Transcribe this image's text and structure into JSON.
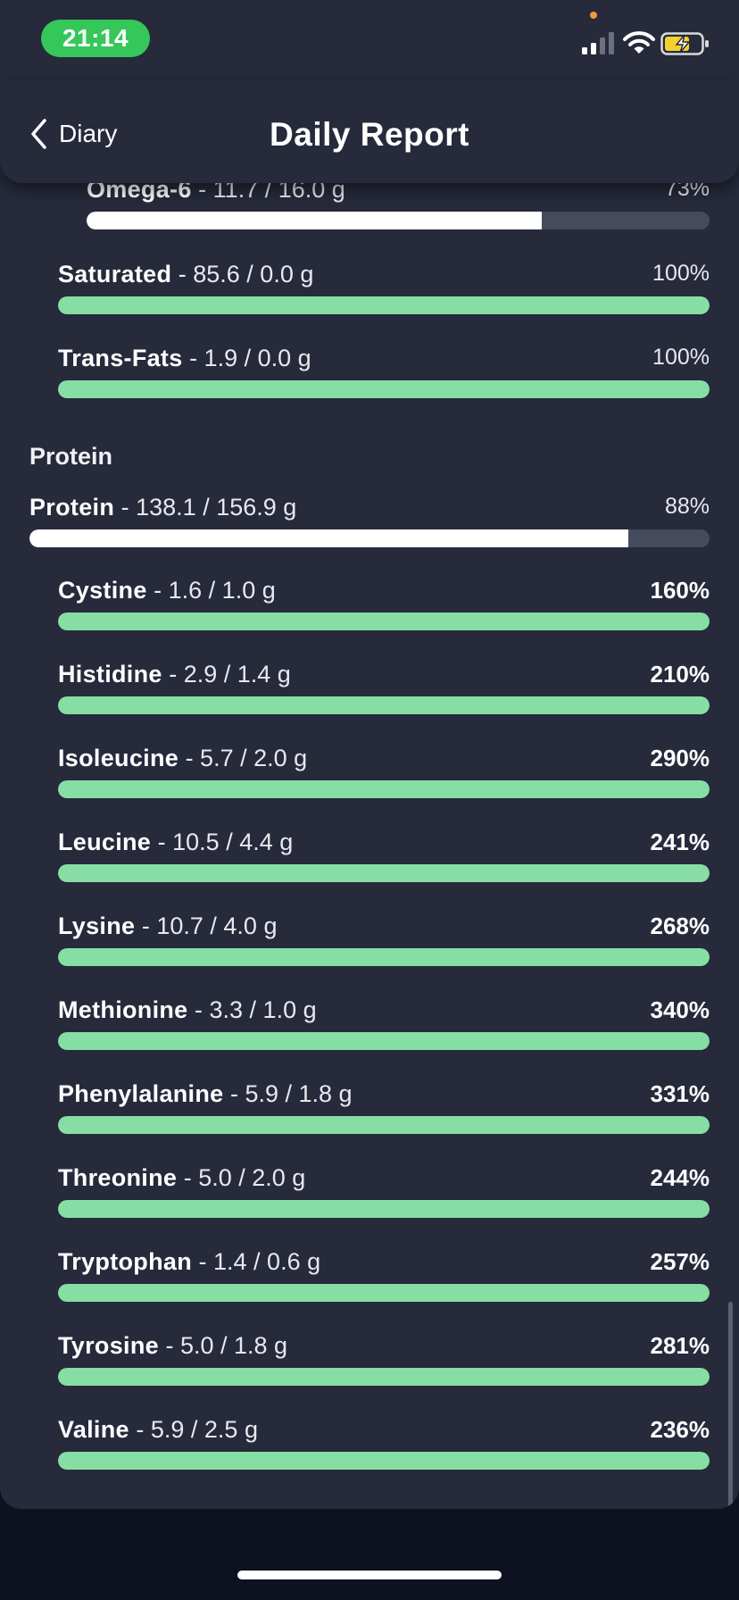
{
  "status_bar": {
    "time": "21:14"
  },
  "header": {
    "back_label": "Diary",
    "title": "Daily Report"
  },
  "colors": {
    "good": "#87dea4",
    "partial": "#ffffff",
    "track": "#454a5c",
    "time_pill": "#35c759"
  },
  "fats": [
    {
      "name": "Omega-6",
      "amount": "- 11.7 / 16.0 g",
      "percent": "73%",
      "fraction": 0.73
    },
    {
      "name": "Saturated",
      "amount": "- 85.6 / 0.0 g",
      "percent": "100%",
      "fraction": 1.0
    },
    {
      "name": "Trans-Fats",
      "amount": "- 1.9 / 0.0 g",
      "percent": "100%",
      "fraction": 1.0
    }
  ],
  "protein_section": {
    "title": "Protein",
    "total": {
      "name": "Protein",
      "amount": "- 138.1 / 156.9 g",
      "percent": "88%",
      "fraction": 0.88
    },
    "amino_acids": [
      {
        "name": "Cystine",
        "amount": "- 1.6 / 1.0 g",
        "percent": "160%",
        "fraction": 1.0
      },
      {
        "name": "Histidine",
        "amount": "- 2.9 / 1.4 g",
        "percent": "210%",
        "fraction": 1.0
      },
      {
        "name": "Isoleucine",
        "amount": "- 5.7 / 2.0 g",
        "percent": "290%",
        "fraction": 1.0
      },
      {
        "name": "Leucine",
        "amount": "- 10.5 / 4.4 g",
        "percent": "241%",
        "fraction": 1.0
      },
      {
        "name": "Lysine",
        "amount": "- 10.7 / 4.0 g",
        "percent": "268%",
        "fraction": 1.0
      },
      {
        "name": "Methionine",
        "amount": "- 3.3 / 1.0 g",
        "percent": "340%",
        "fraction": 1.0
      },
      {
        "name": "Phenylalanine",
        "amount": "- 5.9 / 1.8 g",
        "percent": "331%",
        "fraction": 1.0
      },
      {
        "name": "Threonine",
        "amount": "- 5.0 / 2.0 g",
        "percent": "244%",
        "fraction": 1.0
      },
      {
        "name": "Tryptophan",
        "amount": "- 1.4 / 0.6 g",
        "percent": "257%",
        "fraction": 1.0
      },
      {
        "name": "Tyrosine",
        "amount": "- 5.0 / 1.8 g",
        "percent": "281%",
        "fraction": 1.0
      },
      {
        "name": "Valine",
        "amount": "- 5.9 / 2.5 g",
        "percent": "236%",
        "fraction": 1.0
      }
    ]
  }
}
